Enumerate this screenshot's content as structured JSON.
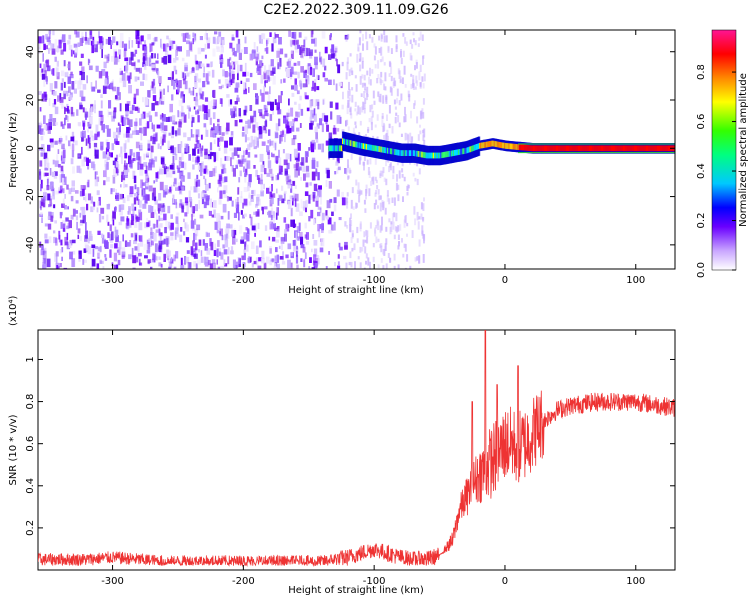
{
  "title": "C2E2.2022.309.11.09.G26",
  "chart_data": [
    {
      "type": "heatmap",
      "xlabel": "Height of straight line (km)",
      "ylabel": "Frequency (Hz)",
      "xlim": [
        -357,
        130
      ],
      "ylim": [
        -50,
        49
      ],
      "x_ticks": [
        -300,
        -200,
        -100,
        0,
        100
      ],
      "y_ticks": [
        -40,
        -20,
        0,
        20,
        40
      ],
      "colorbar": {
        "label": "Normalized spectral amplitude",
        "range": [
          0,
          0.97
        ],
        "ticks": [
          0.0,
          0.2,
          0.4,
          0.6,
          0.8
        ],
        "colormap": [
          "#ffffff",
          "#8a2be2",
          "#5a00ff",
          "#0000ff",
          "#00ffff",
          "#00ff00",
          "#ffff00",
          "#ff8800",
          "#ff0000",
          "#ff1493"
        ]
      },
      "ridge": {
        "x": [
          -125,
          -110,
          -100,
          -90,
          -80,
          -70,
          -60,
          -50,
          -40,
          -30,
          -20,
          -10,
          0,
          20,
          60,
          130
        ],
        "freq": [
          3,
          1,
          0,
          -1,
          -2,
          -2,
          -3,
          -3,
          -2,
          -1,
          1,
          2,
          1,
          0,
          0,
          0
        ]
      }
    },
    {
      "type": "line",
      "xlabel": "Height of straight line (km)",
      "ylabel": "SNR (10 * v/v)",
      "y_multiplier": "(x10⁴)",
      "xlim": [
        -357,
        130
      ],
      "ylim": [
        0,
        1.14
      ],
      "x_ticks": [
        -300,
        -200,
        -100,
        0,
        100
      ],
      "y_ticks": [
        0.2,
        0.4,
        0.6,
        0.8,
        1
      ],
      "color": "#ee3333",
      "series": [
        {
          "x": [
            -357,
            -340,
            -320,
            -300,
            -280,
            -260,
            -240,
            -220,
            -200,
            -180,
            -160,
            -140,
            -130,
            -120,
            -110,
            -100,
            -90,
            -80,
            -70,
            -60,
            -50,
            -40,
            -35,
            -30,
            -25,
            -20,
            -15,
            -10,
            -5,
            0,
            5,
            10,
            15,
            20,
            25,
            30,
            40,
            50,
            60,
            70,
            80,
            90,
            100,
            110,
            120,
            130
          ],
          "values": [
            0.05,
            0.05,
            0.05,
            0.06,
            0.05,
            0.04,
            0.04,
            0.04,
            0.04,
            0.04,
            0.04,
            0.04,
            0.05,
            0.06,
            0.08,
            0.1,
            0.08,
            0.06,
            0.05,
            0.05,
            0.07,
            0.14,
            0.28,
            0.34,
            0.4,
            0.45,
            0.48,
            0.52,
            0.55,
            0.6,
            0.6,
            0.58,
            0.6,
            0.64,
            0.68,
            0.71,
            0.76,
            0.78,
            0.79,
            0.8,
            0.8,
            0.8,
            0.8,
            0.79,
            0.78,
            0.77
          ]
        }
      ],
      "spikes": [
        {
          "x": -25,
          "value": 0.8
        },
        {
          "x": -15,
          "value": 1.14
        },
        {
          "x": -6,
          "value": 0.88
        },
        {
          "x": 10,
          "value": 0.97
        }
      ]
    }
  ]
}
